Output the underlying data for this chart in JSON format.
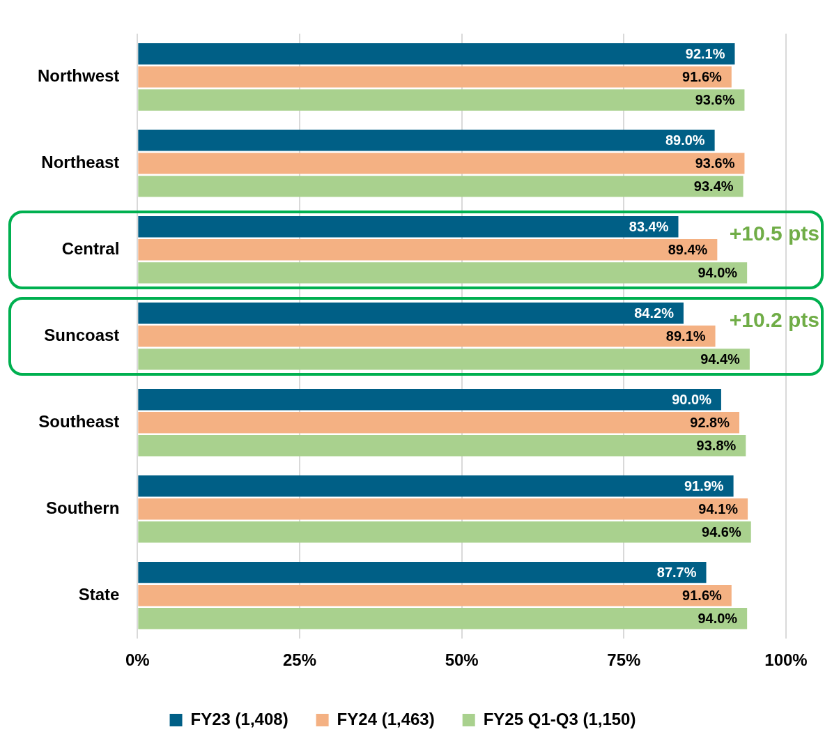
{
  "chart_data": {
    "type": "bar",
    "orientation": "horizontal",
    "categories": [
      "Northwest",
      "Northeast",
      "Central",
      "Suncoast",
      "Southeast",
      "Southern",
      "State"
    ],
    "series": [
      {
        "name": "FY23 (1,408)",
        "color": "#005f86",
        "values": [
          92.1,
          89.0,
          83.4,
          84.2,
          90.0,
          91.9,
          87.7
        ],
        "value_labels": [
          "92.1%",
          "89.0%",
          "83.4%",
          "84.2%",
          "90.0%",
          "91.9%",
          "87.7%"
        ]
      },
      {
        "name": "FY24 (1,463)",
        "color": "#f4b183",
        "values": [
          91.6,
          93.6,
          89.4,
          89.1,
          92.8,
          94.1,
          91.6
        ],
        "value_labels": [
          "91.6%",
          "93.6%",
          "89.4%",
          "89.1%",
          "92.8%",
          "94.1%",
          "91.6%"
        ]
      },
      {
        "name": "FY25 Q1-Q3 (1,150)",
        "color": "#a9d18e",
        "values": [
          93.6,
          93.4,
          94.0,
          94.4,
          93.8,
          94.6,
          94.0
        ],
        "value_labels": [
          "93.6%",
          "93.4%",
          "94.0%",
          "94.4%",
          "93.8%",
          "94.6%",
          "94.0%"
        ]
      }
    ],
    "xlim": [
      0,
      100
    ],
    "xticks": [
      {
        "value": 0,
        "label": "0%"
      },
      {
        "value": 25,
        "label": "25%"
      },
      {
        "value": 50,
        "label": "50%"
      },
      {
        "value": 75,
        "label": "75%"
      },
      {
        "value": 100,
        "label": "100%"
      }
    ],
    "grid": "x",
    "legend": "bottom",
    "annotations": [
      "+10.5 pts",
      "+10.2 pts"
    ]
  }
}
